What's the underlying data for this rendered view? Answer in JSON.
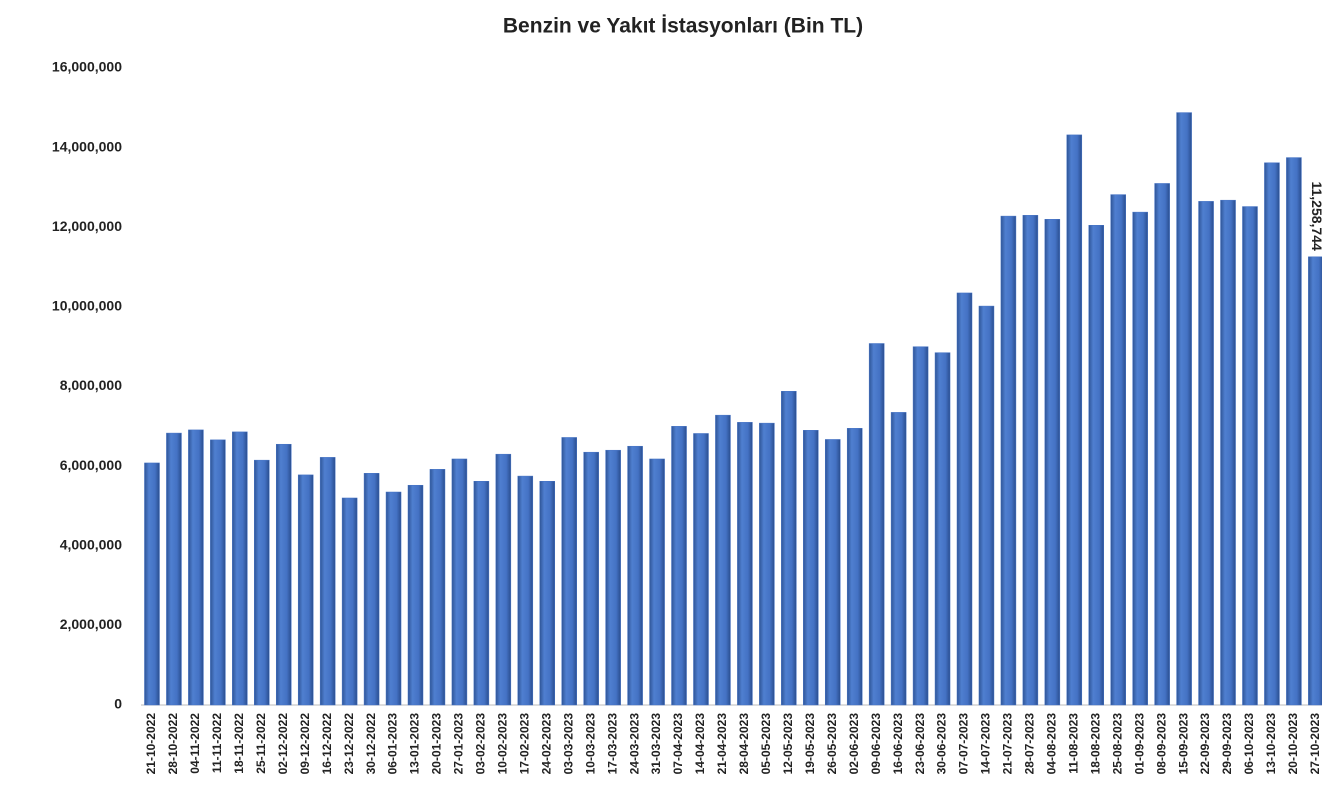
{
  "chart_data": {
    "type": "bar",
    "title": "Benzin ve Yakıt İstasyonları (Bin TL)",
    "categories": [
      "21-10-2022",
      "28-10-2022",
      "04-11-2022",
      "11-11-2022",
      "18-11-2022",
      "25-11-2022",
      "02-12-2022",
      "09-12-2022",
      "16-12-2022",
      "23-12-2022",
      "30-12-2022",
      "06-01-2023",
      "13-01-2023",
      "20-01-2023",
      "27-01-2023",
      "03-02-2023",
      "10-02-2023",
      "17-02-2023",
      "24-02-2023",
      "03-03-2023",
      "10-03-2023",
      "17-03-2023",
      "24-03-2023",
      "31-03-2023",
      "07-04-2023",
      "14-04-2023",
      "21-04-2023",
      "28-04-2023",
      "05-05-2023",
      "12-05-2023",
      "19-05-2023",
      "26-05-2023",
      "02-06-2023",
      "09-06-2023",
      "16-06-2023",
      "23-06-2023",
      "30-06-2023",
      "07-07-2023",
      "14-07-2023",
      "21-07-2023",
      "28-07-2023",
      "04-08-2023",
      "11-08-2023",
      "18-08-2023",
      "25-08-2023",
      "01-09-2023",
      "08-09-2023",
      "15-09-2023",
      "22-09-2023",
      "29-09-2023",
      "06-10-2023",
      "13-10-2023",
      "20-10-2023",
      "27-10-2023"
    ],
    "values": [
      6080000,
      6830000,
      6910000,
      6660000,
      6860000,
      6150000,
      6550000,
      5780000,
      6220000,
      5200000,
      5820000,
      5350000,
      5520000,
      5920000,
      6180000,
      5620000,
      6300000,
      5750000,
      5620000,
      6720000,
      6350000,
      6400000,
      6500000,
      6180000,
      7000000,
      6820000,
      7280000,
      7100000,
      7080000,
      7880000,
      6900000,
      6670000,
      6950000,
      9080000,
      7350000,
      9000000,
      8850000,
      10350000,
      10020000,
      12280000,
      12300000,
      12200000,
      14320000,
      12050000,
      12820000,
      12380000,
      13100000,
      14880000,
      12650000,
      12680000,
      12520000,
      13620000,
      13750000,
      11258744
    ],
    "value_labels": [
      null,
      null,
      null,
      null,
      null,
      null,
      null,
      null,
      null,
      null,
      null,
      null,
      null,
      null,
      null,
      null,
      null,
      null,
      null,
      null,
      null,
      null,
      null,
      null,
      null,
      null,
      null,
      null,
      null,
      null,
      null,
      null,
      null,
      null,
      null,
      null,
      null,
      null,
      null,
      null,
      null,
      null,
      null,
      null,
      null,
      null,
      null,
      null,
      null,
      null,
      null,
      null,
      null,
      "11,258,744"
    ],
    "color": "#4472c4",
    "ylim": [
      0,
      16000000
    ],
    "yticks": [
      0,
      {
        "value": 2000000,
        "label": "2,000,000"
      },
      {
        "value": 4000000,
        "label": "4,000,000"
      },
      {
        "value": 6000000,
        "label": "6,000,000"
      },
      {
        "value": 8000000,
        "label": "8,000,000"
      },
      {
        "value": 10000000,
        "label": "10,000,000"
      },
      {
        "value": 12000000,
        "label": "12,000,000"
      },
      {
        "value": 14000000,
        "label": "14,000,000"
      },
      {
        "value": 16000000,
        "label": "16,000,000"
      }
    ],
    "grid": false
  }
}
